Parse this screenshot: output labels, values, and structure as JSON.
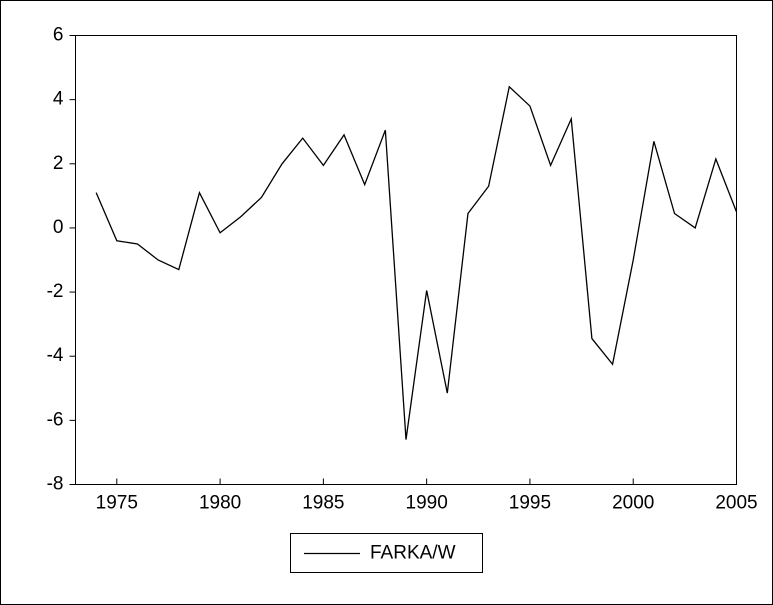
{
  "chart_data": {
    "type": "line",
    "x": [
      1974,
      1975,
      1976,
      1977,
      1978,
      1979,
      1980,
      1981,
      1982,
      1983,
      1984,
      1985,
      1986,
      1987,
      1988,
      1989,
      1990,
      1991,
      1992,
      1993,
      1994,
      1995,
      1996,
      1997,
      1998,
      1999,
      2000,
      2001,
      2002,
      2003,
      2004,
      2005
    ],
    "series": [
      {
        "name": "FARKA/W",
        "color": "#000000",
        "values": [
          1.1,
          -0.4,
          -0.5,
          -1.0,
          -1.3,
          1.1,
          -0.15,
          0.35,
          0.95,
          2.0,
          2.8,
          1.95,
          2.9,
          1.35,
          3.05,
          -6.6,
          -1.95,
          -5.15,
          0.45,
          1.3,
          4.4,
          3.8,
          1.95,
          3.4,
          -3.45,
          -4.25,
          -1.0,
          2.7,
          0.45,
          0.0,
          2.15,
          0.5
        ]
      }
    ],
    "xlim": [
      1973,
      2005
    ],
    "xticks": [
      1975,
      1980,
      1985,
      1990,
      1995,
      2000,
      2005
    ],
    "ylim": [
      -8,
      6
    ],
    "yticks": [
      -8,
      -6,
      -4,
      -2,
      0,
      2,
      4,
      6
    ],
    "grid": false,
    "legend": "bottom"
  }
}
